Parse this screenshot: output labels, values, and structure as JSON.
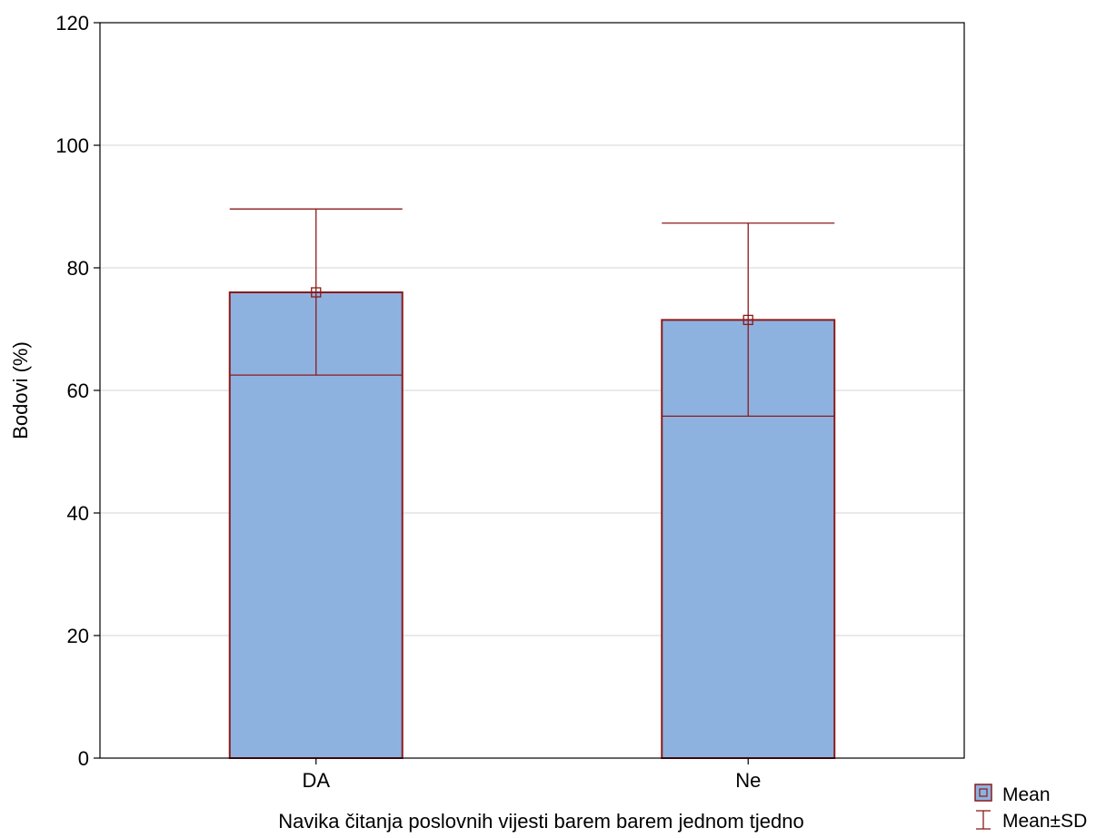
{
  "chart_data": {
    "type": "bar",
    "categories": [
      "DA",
      "Ne"
    ],
    "series": [
      {
        "name": "Mean",
        "values": [
          76,
          71.5
        ],
        "sd_lower": [
          62.5,
          55.8
        ],
        "sd_upper": [
          89.6,
          87.3
        ]
      }
    ],
    "xlabel": "Navika čitanja poslovnih vijesti barem barem jednom tjedno",
    "ylabel": "Bodovi (%)",
    "ylim": [
      0,
      120
    ],
    "yticks": [
      0,
      20,
      40,
      60,
      80,
      100,
      120
    ],
    "grid": true,
    "legend": {
      "position": "bottom-right",
      "entries": [
        "Mean",
        "Mean±SD"
      ]
    },
    "colors": {
      "bar_fill": "#8eb2e0",
      "bar_stroke": "#8b1a1a",
      "grid": "#d4d4d4",
      "axis": "#000000"
    }
  }
}
